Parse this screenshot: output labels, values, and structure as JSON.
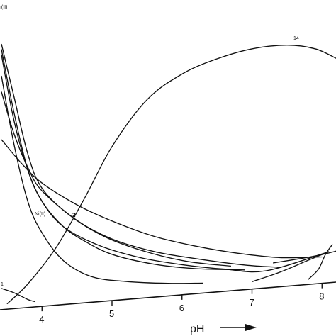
{
  "chart_data": {
    "type": "line",
    "title": "",
    "xlabel": "pH",
    "ylabel": "",
    "xlim": [
      3.4,
      8.2
    ],
    "ylim": [
      0,
      100
    ],
    "x_ticks": [
      "4",
      "5",
      "6",
      "7",
      "8"
    ],
    "grid": false,
    "series": [
      {
        "name": "",
        "values": [
          [
            3.42,
            88
          ],
          [
            3.6,
            62
          ],
          [
            3.8,
            40
          ],
          [
            4.0,
            28
          ],
          [
            4.3,
            17
          ],
          [
            4.7,
            10
          ],
          [
            5.2,
            7
          ],
          [
            5.8,
            5
          ],
          [
            6.3,
            4
          ]
        ]
      },
      {
        "name": "n(II)",
        "values": [
          [
            3.42,
            96
          ],
          [
            3.6,
            71
          ],
          [
            3.8,
            52
          ],
          [
            4.0,
            40
          ],
          [
            4.3,
            30
          ],
          [
            4.8,
            22
          ],
          [
            5.4,
            16
          ],
          [
            6.0,
            12
          ],
          [
            6.6,
            9
          ],
          [
            7.2,
            7
          ],
          [
            8.1,
            13
          ]
        ]
      },
      {
        "name": "",
        "values": [
          [
            3.42,
            82
          ],
          [
            3.6,
            66
          ],
          [
            3.8,
            53
          ],
          [
            4.0,
            44
          ],
          [
            4.5,
            32
          ],
          [
            5.0,
            24
          ],
          [
            5.6,
            18
          ],
          [
            6.2,
            14
          ],
          [
            6.9,
            10
          ],
          [
            7.4,
            8
          ]
        ]
      },
      {
        "name": "",
        "values": [
          [
            3.42,
            64
          ],
          [
            3.7,
            55
          ],
          [
            4.0,
            47
          ],
          [
            4.5,
            38
          ],
          [
            5.0,
            31
          ],
          [
            5.6,
            24
          ],
          [
            6.2,
            19
          ],
          [
            6.8,
            15
          ],
          [
            7.4,
            12
          ],
          [
            8.0,
            11
          ]
        ]
      },
      {
        "name": "Ni(II)",
        "values": [
          [
            3.42,
            98
          ],
          [
            3.6,
            74
          ],
          [
            3.8,
            52
          ],
          [
            4.0,
            40
          ],
          [
            4.3,
            30
          ],
          [
            4.6,
            24
          ],
          [
            5.0,
            18
          ],
          [
            5.6,
            13
          ],
          [
            6.2,
            10
          ],
          [
            6.9,
            8
          ]
        ]
      },
      {
        "name": "2",
        "values": [
          [
            3.42,
            100
          ],
          [
            3.6,
            80
          ],
          [
            3.8,
            58
          ],
          [
            4.0,
            45
          ],
          [
            4.4,
            34
          ],
          [
            4.9,
            25
          ],
          [
            5.5,
            18
          ],
          [
            6.1,
            13
          ],
          [
            6.7,
            10
          ]
        ]
      },
      {
        "name": "14",
        "values": [
          [
            3.5,
            2
          ],
          [
            3.8,
            9
          ],
          [
            4.2,
            22
          ],
          [
            4.6,
            40
          ],
          [
            5.0,
            60
          ],
          [
            5.5,
            78
          ],
          [
            6.0,
            88
          ],
          [
            6.5,
            94
          ],
          [
            7.0,
            98
          ],
          [
            7.5,
            99.5
          ],
          [
            7.9,
            98
          ],
          [
            8.2,
            94
          ]
        ]
      },
      {
        "name": "1",
        "values": [
          [
            3.42,
            8
          ],
          [
            3.6,
            6
          ],
          [
            3.8,
            3
          ],
          [
            3.9,
            2
          ]
        ]
      },
      {
        "name": "",
        "values": [
          [
            7.0,
            3
          ],
          [
            7.4,
            6
          ],
          [
            7.8,
            10
          ],
          [
            8.1,
            13
          ]
        ]
      },
      {
        "name": "",
        "values": [
          [
            7.8,
            2
          ],
          [
            7.95,
            6
          ],
          [
            8.05,
            12
          ],
          [
            8.15,
            16
          ]
        ]
      },
      {
        "name": "",
        "values": [
          [
            7.3,
            10
          ],
          [
            7.7,
            11
          ],
          [
            8.0,
            12
          ],
          [
            8.2,
            13
          ]
        ]
      }
    ],
    "annotations": [
      "n(II)",
      "14",
      "Ni(II)",
      "2",
      "1"
    ]
  }
}
